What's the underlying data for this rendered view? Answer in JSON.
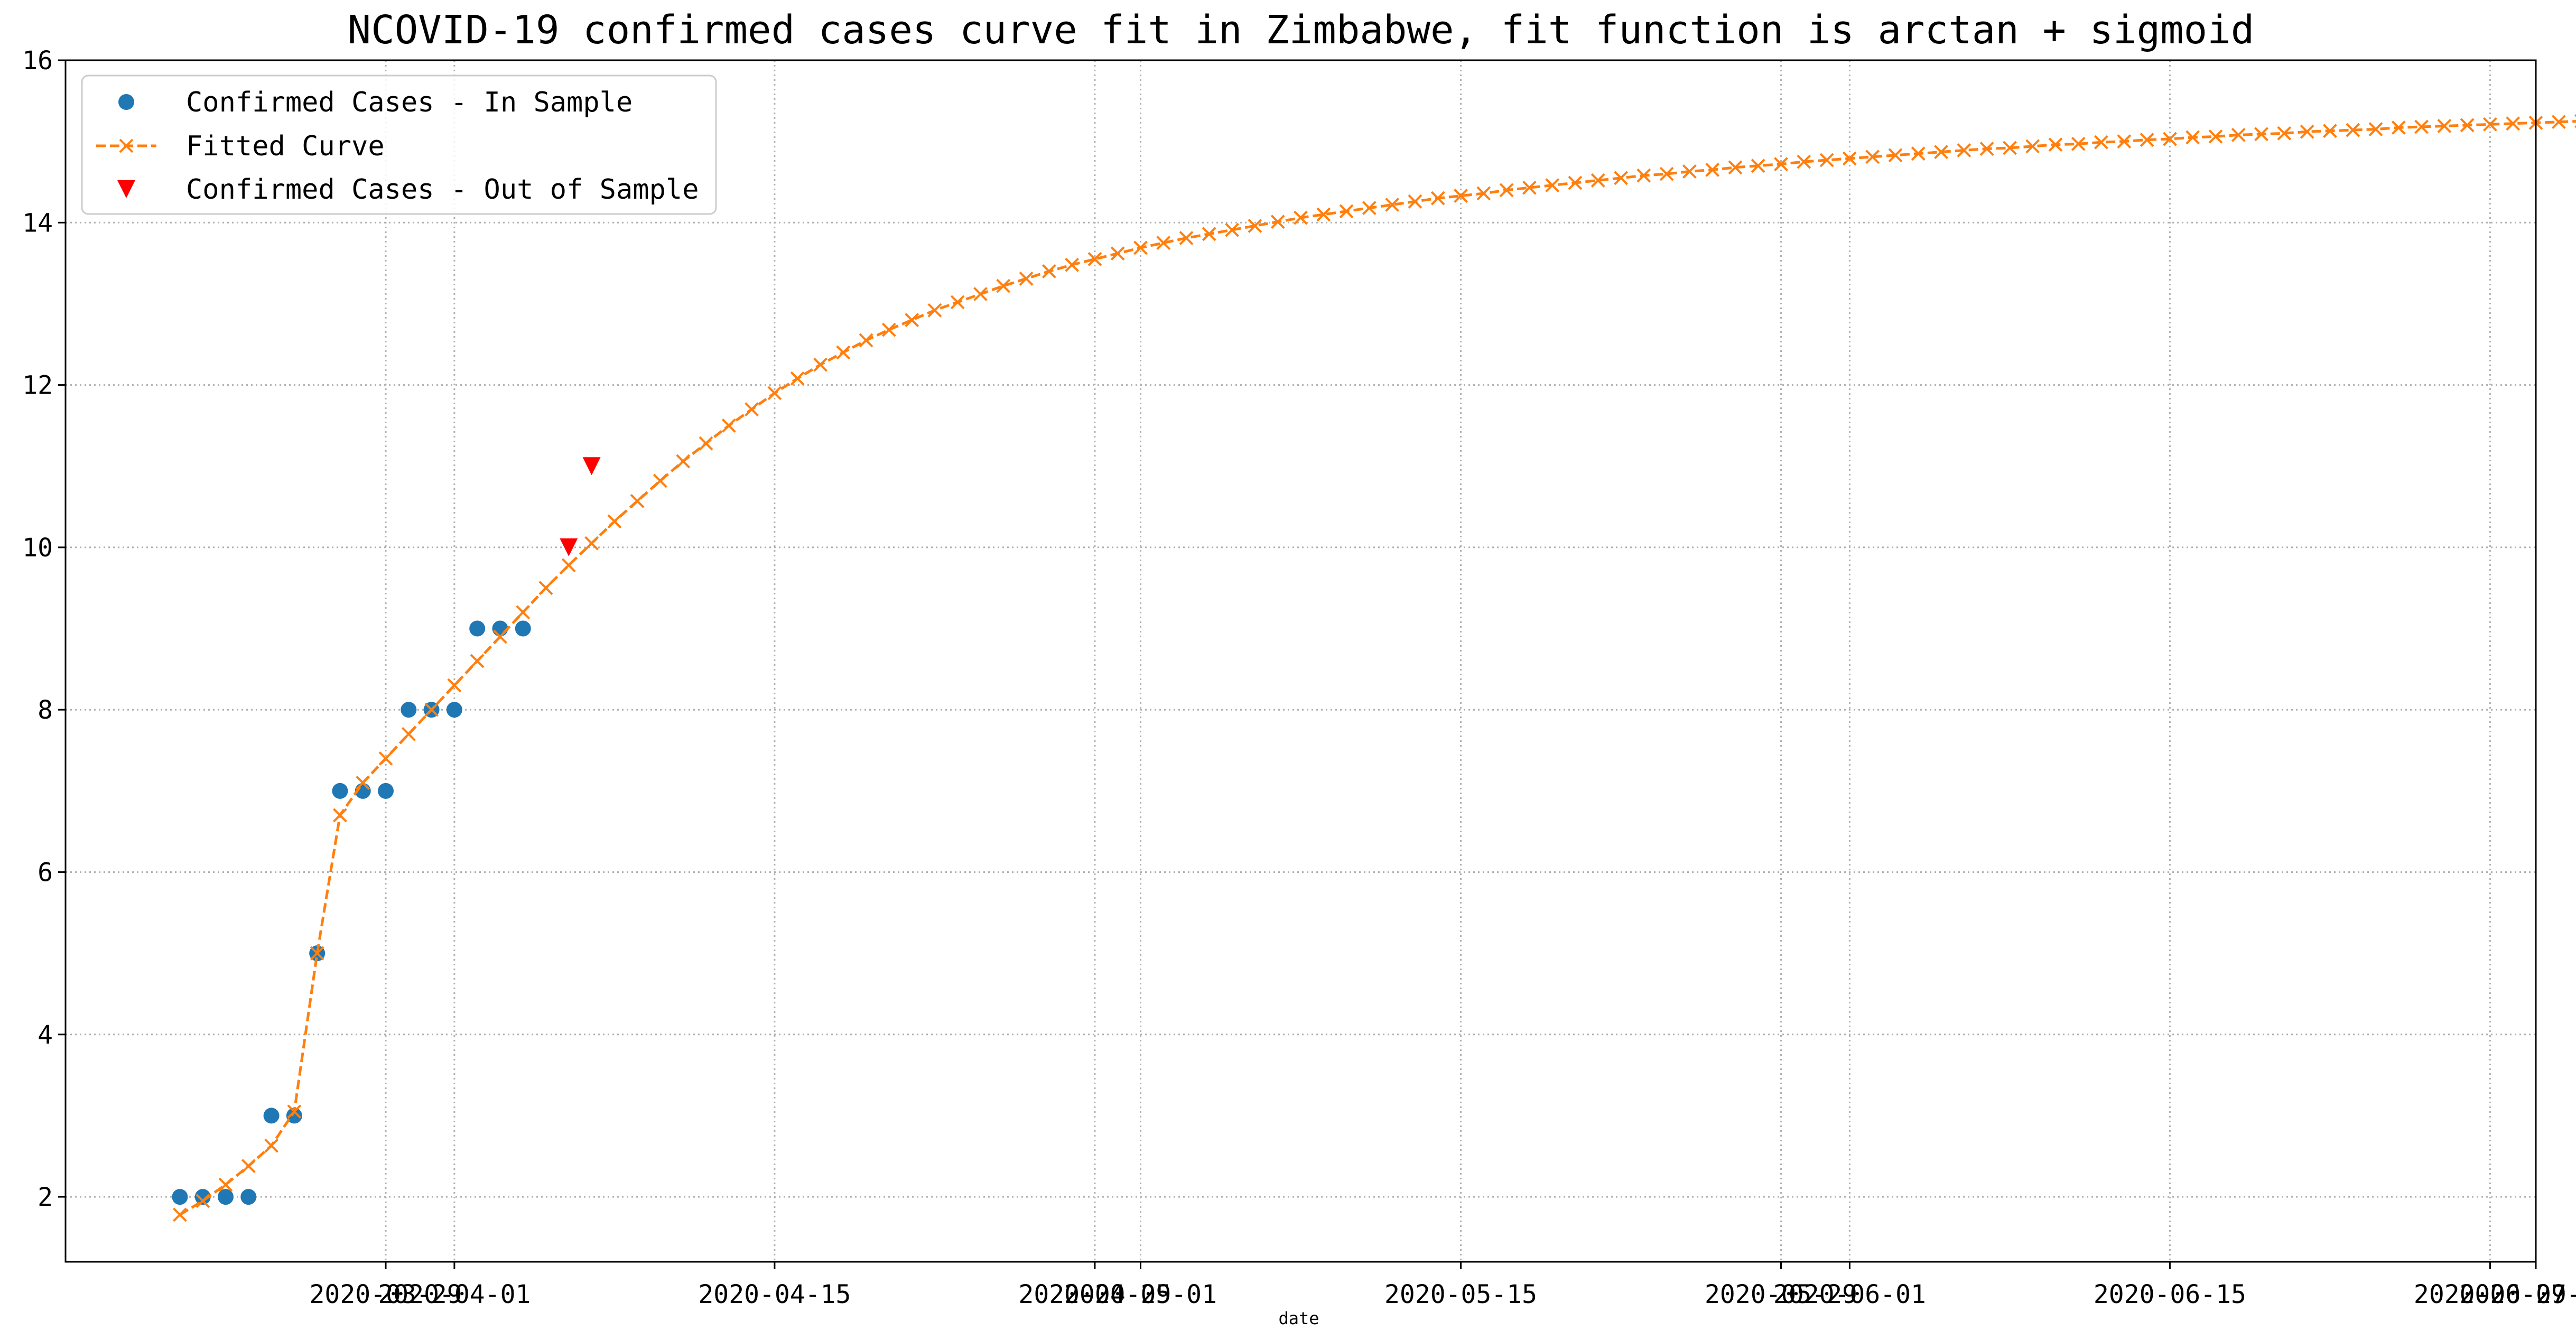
{
  "chart_data": {
    "type": "line",
    "title": "NCOVID-19 confirmed cases curve fit in Zimbabwe, fit function is arctan + sigmoid",
    "xlabel": "date",
    "ylabel": "",
    "x_axis_type": "date",
    "xlim": [
      "2020-03-15",
      "2020-07-01"
    ],
    "ylim": [
      1.2,
      16
    ],
    "x_ticks": [
      "2020-03-29",
      "2020-04-01",
      "2020-04-15",
      "2020-04-29",
      "2020-05-01",
      "2020-05-15",
      "2020-05-29",
      "2020-06-01",
      "2020-06-15",
      "2020-06-29",
      "2020-07-01"
    ],
    "x_tick_labels": [
      "2020-03-29",
      "2020-04-01",
      "2020-04-15",
      "2020-04-29",
      "2020-05-01",
      "2020-05-15",
      "2020-05-29",
      "2020-06-01",
      "2020-06-15",
      "2020-06-29",
      "2020-07-01"
    ],
    "y_ticks": [
      2,
      4,
      6,
      8,
      10,
      12,
      14,
      16
    ],
    "y_tick_labels": [
      "2",
      "4",
      "6",
      "8",
      "10",
      "12",
      "14",
      "16"
    ],
    "grid": true,
    "legend_position": "top-left",
    "series": [
      {
        "name": "Confirmed Cases - In Sample",
        "kind": "scatter",
        "marker": "circle",
        "color": "#1f77b4",
        "x": [
          "2020-03-20",
          "2020-03-21",
          "2020-03-22",
          "2020-03-23",
          "2020-03-24",
          "2020-03-25",
          "2020-03-26",
          "2020-03-27",
          "2020-03-28",
          "2020-03-29",
          "2020-03-30",
          "2020-03-31",
          "2020-04-01",
          "2020-04-02",
          "2020-04-03",
          "2020-04-04",
          "2020-04-05"
        ],
        "y": [
          2,
          2,
          2,
          2,
          3,
          3,
          5,
          7,
          7,
          7,
          8,
          8,
          8,
          9,
          9,
          9,
          null
        ]
      },
      {
        "name": "Fitted Curve",
        "kind": "line",
        "marker": "x",
        "line_style": "dashed",
        "color": "#ff7f0e",
        "x_start": "2020-03-20",
        "x_step_days": 1,
        "y": [
          1.78,
          1.95,
          2.15,
          2.38,
          2.63,
          3.05,
          5.0,
          6.7,
          7.1,
          7.4,
          7.7,
          8.0,
          8.3,
          8.6,
          8.9,
          9.2,
          9.5,
          9.78,
          10.05,
          10.32,
          10.57,
          10.82,
          11.06,
          11.28,
          11.5,
          11.7,
          11.9,
          12.08,
          12.25,
          12.4,
          12.55,
          12.68,
          12.8,
          12.92,
          13.02,
          13.12,
          13.22,
          13.31,
          13.4,
          13.48,
          13.55,
          13.62,
          13.69,
          13.75,
          13.81,
          13.86,
          13.91,
          13.96,
          14.01,
          14.06,
          14.1,
          14.14,
          14.18,
          14.22,
          14.26,
          14.3,
          14.33,
          14.36,
          14.4,
          14.43,
          14.46,
          14.49,
          14.52,
          14.55,
          14.58,
          14.6,
          14.63,
          14.65,
          14.68,
          14.7,
          14.72,
          14.75,
          14.77,
          14.79,
          14.81,
          14.83,
          14.85,
          14.87,
          14.89,
          14.91,
          14.92,
          14.94,
          14.96,
          14.97,
          14.99,
          15.0,
          15.02,
          15.03,
          15.05,
          15.06,
          15.08,
          15.09,
          15.1,
          15.12,
          15.13,
          15.14,
          15.15,
          15.17,
          15.18,
          15.19,
          15.2,
          15.21,
          15.22,
          15.23,
          15.24,
          15.25,
          15.26,
          15.27,
          15.28,
          15.29,
          15.3,
          15.31,
          15.32,
          15.33
        ]
      },
      {
        "name": "Confirmed Cases - Out of Sample",
        "kind": "scatter",
        "marker": "triangle-down",
        "color": "#ff0000",
        "x": [
          "2020-04-06",
          "2020-04-07"
        ],
        "y": [
          10,
          11
        ]
      }
    ]
  }
}
